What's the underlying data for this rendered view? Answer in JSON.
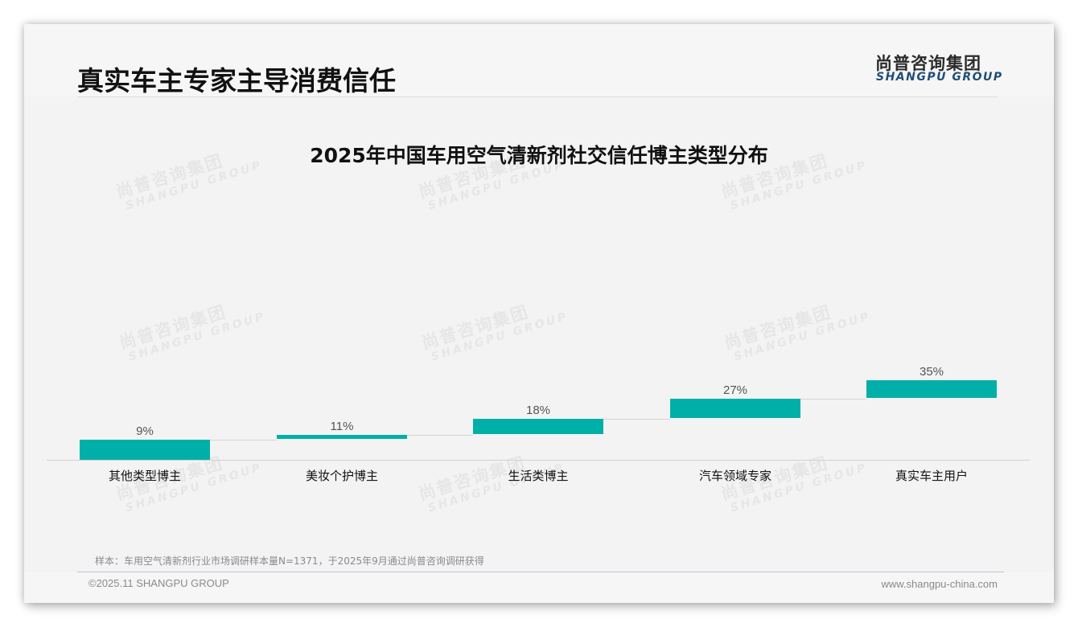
{
  "header": {
    "page_title": "真实车主专家主导消费信任",
    "logo_cn": "尚普咨询集团",
    "logo_en": "SHANGPU GROUP"
  },
  "watermark": {
    "cn": "尚普咨询集团",
    "en": "SHANGPU GROUP"
  },
  "colors": {
    "bar": "#00b0a8",
    "connector": "#d4d4d4",
    "axis": "#d0d0d0",
    "logo_en": "#1f4e79"
  },
  "chart_data": {
    "type": "bar",
    "subtype": "waterfall-style (floating bars stepping upward)",
    "title": "2025年中国车用空气清新剂社交信任博主类型分布",
    "categories": [
      "其他类型博主",
      "美妆个护博主",
      "生活类博主",
      "汽车领域专家",
      "真实车主用户"
    ],
    "values": [
      9,
      11,
      18,
      27,
      35
    ],
    "value_labels": [
      "9%",
      "11%",
      "18%",
      "27%",
      "35%"
    ],
    "unit": "%",
    "xlabel": "",
    "ylabel": "",
    "grid": false,
    "legend": null
  },
  "footer": {
    "note": "样本：车用空气清新剂行业市场调研样本量N=1371，于2025年9月通过尚普咨询调研获得",
    "copyright": "©2025.11 SHANGPU GROUP",
    "website": "www.shangpu-china.com"
  }
}
